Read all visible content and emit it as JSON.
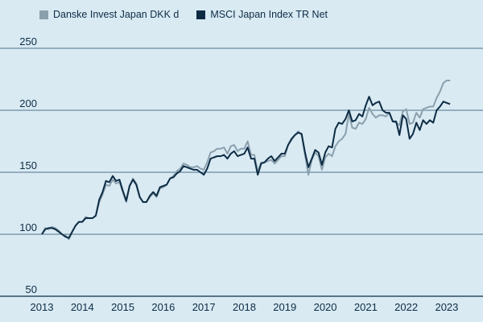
{
  "chart_data": {
    "type": "line",
    "title": "",
    "xlabel": "",
    "ylabel": "",
    "xlim": [
      2013.0,
      2023.2
    ],
    "ylim": [
      50,
      250
    ],
    "yticks": [
      50,
      100,
      150,
      200,
      250
    ],
    "xticks": [
      "2013",
      "2014",
      "2015",
      "2016",
      "2017",
      "2018",
      "2019",
      "2020",
      "2021",
      "2022",
      "2023"
    ],
    "grid": "horizontal",
    "legend_position": "top-left",
    "series": [
      {
        "name": "Danske Invest Japan DKK d",
        "color": "#8aa0ad",
        "points": [
          [
            2013.0,
            100
          ],
          [
            2013.083,
            105
          ],
          [
            2013.167,
            104
          ],
          [
            2013.25,
            106
          ],
          [
            2013.333,
            105
          ],
          [
            2013.417,
            103
          ],
          [
            2013.5,
            100
          ],
          [
            2013.583,
            99
          ],
          [
            2013.667,
            96
          ],
          [
            2013.75,
            102
          ],
          [
            2013.833,
            107
          ],
          [
            2013.917,
            110
          ],
          [
            2014.0,
            110
          ],
          [
            2014.083,
            114
          ],
          [
            2014.167,
            113
          ],
          [
            2014.25,
            113
          ],
          [
            2014.333,
            115
          ],
          [
            2014.417,
            126
          ],
          [
            2014.5,
            132
          ],
          [
            2014.583,
            140
          ],
          [
            2014.667,
            139
          ],
          [
            2014.75,
            144
          ],
          [
            2014.833,
            141
          ],
          [
            2014.917,
            142
          ],
          [
            2015.0,
            134
          ],
          [
            2015.083,
            126
          ],
          [
            2015.167,
            139
          ],
          [
            2015.25,
            145
          ],
          [
            2015.333,
            141
          ],
          [
            2015.417,
            130
          ],
          [
            2015.5,
            126
          ],
          [
            2015.583,
            126
          ],
          [
            2015.667,
            130
          ],
          [
            2015.75,
            133
          ],
          [
            2015.833,
            130
          ],
          [
            2015.917,
            137
          ],
          [
            2016.0,
            138
          ],
          [
            2016.083,
            140
          ],
          [
            2016.167,
            145
          ],
          [
            2016.25,
            147
          ],
          [
            2016.333,
            151
          ],
          [
            2016.417,
            153
          ],
          [
            2016.5,
            157
          ],
          [
            2016.583,
            156
          ],
          [
            2016.667,
            154
          ],
          [
            2016.75,
            154
          ],
          [
            2016.833,
            155
          ],
          [
            2016.917,
            153
          ],
          [
            2017.0,
            152
          ],
          [
            2017.083,
            158
          ],
          [
            2017.167,
            166
          ],
          [
            2017.25,
            167
          ],
          [
            2017.333,
            169
          ],
          [
            2017.417,
            169
          ],
          [
            2017.5,
            170
          ],
          [
            2017.583,
            165
          ],
          [
            2017.667,
            171
          ],
          [
            2017.75,
            172
          ],
          [
            2017.833,
            167
          ],
          [
            2017.917,
            169
          ],
          [
            2018.0,
            169
          ],
          [
            2018.083,
            175
          ],
          [
            2018.167,
            164
          ],
          [
            2018.25,
            164
          ],
          [
            2018.333,
            150
          ],
          [
            2018.417,
            158
          ],
          [
            2018.5,
            158
          ],
          [
            2018.583,
            159
          ],
          [
            2018.667,
            160
          ],
          [
            2018.75,
            157
          ],
          [
            2018.833,
            160
          ],
          [
            2018.917,
            163
          ],
          [
            2019.0,
            163
          ],
          [
            2019.083,
            172
          ],
          [
            2019.167,
            176
          ],
          [
            2019.25,
            180
          ],
          [
            2019.333,
            183
          ],
          [
            2019.417,
            180
          ],
          [
            2019.5,
            164
          ],
          [
            2019.583,
            148
          ],
          [
            2019.667,
            160
          ],
          [
            2019.75,
            166
          ],
          [
            2019.833,
            163
          ],
          [
            2019.917,
            152
          ],
          [
            2020.0,
            162
          ],
          [
            2020.083,
            165
          ],
          [
            2020.167,
            163
          ],
          [
            2020.25,
            171
          ],
          [
            2020.333,
            175
          ],
          [
            2020.417,
            177
          ],
          [
            2020.5,
            181
          ],
          [
            2020.583,
            197
          ],
          [
            2020.667,
            186
          ],
          [
            2020.75,
            185
          ],
          [
            2020.833,
            190
          ],
          [
            2020.917,
            189
          ],
          [
            2021.0,
            193
          ],
          [
            2021.083,
            202
          ],
          [
            2021.167,
            197
          ],
          [
            2021.25,
            194
          ],
          [
            2021.333,
            196
          ],
          [
            2021.417,
            196
          ],
          [
            2021.5,
            195
          ],
          [
            2021.583,
            198
          ],
          [
            2021.667,
            191
          ],
          [
            2021.75,
            190
          ],
          [
            2021.833,
            188
          ],
          [
            2021.917,
            199
          ],
          [
            2022.0,
            201
          ],
          [
            2022.083,
            189
          ],
          [
            2022.167,
            190
          ],
          [
            2022.25,
            198
          ],
          [
            2022.333,
            194
          ],
          [
            2022.417,
            201
          ],
          [
            2022.5,
            202
          ],
          [
            2022.583,
            203
          ],
          [
            2022.667,
            203
          ],
          [
            2022.75,
            210
          ],
          [
            2022.833,
            215
          ],
          [
            2022.917,
            222
          ],
          [
            2023.0,
            224
          ],
          [
            2023.083,
            224
          ]
        ]
      },
      {
        "name": "MSCI Japan Index TR Net",
        "color": "#0d2c44",
        "points": [
          [
            2013.0,
            100
          ],
          [
            2013.083,
            104
          ],
          [
            2013.167,
            105
          ],
          [
            2013.25,
            105
          ],
          [
            2013.333,
            104
          ],
          [
            2013.417,
            102
          ],
          [
            2013.5,
            100
          ],
          [
            2013.583,
            98
          ],
          [
            2013.667,
            97
          ],
          [
            2013.75,
            102
          ],
          [
            2013.833,
            107
          ],
          [
            2013.917,
            110
          ],
          [
            2014.0,
            110
          ],
          [
            2014.083,
            113
          ],
          [
            2014.167,
            113
          ],
          [
            2014.25,
            113
          ],
          [
            2014.333,
            115
          ],
          [
            2014.417,
            128
          ],
          [
            2014.5,
            134
          ],
          [
            2014.583,
            143
          ],
          [
            2014.667,
            142
          ],
          [
            2014.75,
            147
          ],
          [
            2014.833,
            143
          ],
          [
            2014.917,
            144
          ],
          [
            2015.0,
            135
          ],
          [
            2015.083,
            127
          ],
          [
            2015.167,
            139
          ],
          [
            2015.25,
            144
          ],
          [
            2015.333,
            140
          ],
          [
            2015.417,
            130
          ],
          [
            2015.5,
            126
          ],
          [
            2015.583,
            126
          ],
          [
            2015.667,
            131
          ],
          [
            2015.75,
            134
          ],
          [
            2015.833,
            131
          ],
          [
            2015.917,
            138
          ],
          [
            2016.0,
            139
          ],
          [
            2016.083,
            140
          ],
          [
            2016.167,
            145
          ],
          [
            2016.25,
            146
          ],
          [
            2016.333,
            149
          ],
          [
            2016.417,
            151
          ],
          [
            2016.5,
            155
          ],
          [
            2016.583,
            154
          ],
          [
            2016.667,
            153
          ],
          [
            2016.75,
            152
          ],
          [
            2016.833,
            152
          ],
          [
            2016.917,
            150
          ],
          [
            2017.0,
            148
          ],
          [
            2017.083,
            153
          ],
          [
            2017.167,
            161
          ],
          [
            2017.25,
            162
          ],
          [
            2017.333,
            163
          ],
          [
            2017.417,
            163
          ],
          [
            2017.5,
            164
          ],
          [
            2017.583,
            161
          ],
          [
            2017.667,
            165
          ],
          [
            2017.75,
            167
          ],
          [
            2017.833,
            163
          ],
          [
            2017.917,
            164
          ],
          [
            2018.0,
            165
          ],
          [
            2018.083,
            170
          ],
          [
            2018.167,
            161
          ],
          [
            2018.25,
            161
          ],
          [
            2018.333,
            148
          ],
          [
            2018.417,
            157
          ],
          [
            2018.5,
            158
          ],
          [
            2018.583,
            161
          ],
          [
            2018.667,
            163
          ],
          [
            2018.75,
            159
          ],
          [
            2018.833,
            162
          ],
          [
            2018.917,
            165
          ],
          [
            2019.0,
            165
          ],
          [
            2019.083,
            172
          ],
          [
            2019.167,
            177
          ],
          [
            2019.25,
            180
          ],
          [
            2019.333,
            182
          ],
          [
            2019.417,
            181
          ],
          [
            2019.5,
            166
          ],
          [
            2019.583,
            154
          ],
          [
            2019.667,
            161
          ],
          [
            2019.75,
            168
          ],
          [
            2019.833,
            166
          ],
          [
            2019.917,
            156
          ],
          [
            2020.0,
            166
          ],
          [
            2020.083,
            171
          ],
          [
            2020.167,
            170
          ],
          [
            2020.25,
            185
          ],
          [
            2020.333,
            190
          ],
          [
            2020.417,
            189
          ],
          [
            2020.5,
            193
          ],
          [
            2020.583,
            200
          ],
          [
            2020.667,
            191
          ],
          [
            2020.75,
            192
          ],
          [
            2020.833,
            197
          ],
          [
            2020.917,
            195
          ],
          [
            2021.0,
            204
          ],
          [
            2021.083,
            211
          ],
          [
            2021.167,
            204
          ],
          [
            2021.25,
            206
          ],
          [
            2021.333,
            207
          ],
          [
            2021.417,
            200
          ],
          [
            2021.5,
            198
          ],
          [
            2021.583,
            198
          ],
          [
            2021.667,
            191
          ],
          [
            2021.75,
            191
          ],
          [
            2021.833,
            180
          ],
          [
            2021.917,
            196
          ],
          [
            2022.0,
            193
          ],
          [
            2022.083,
            177
          ],
          [
            2022.167,
            181
          ],
          [
            2022.25,
            190
          ],
          [
            2022.333,
            184
          ],
          [
            2022.417,
            192
          ],
          [
            2022.5,
            189
          ],
          [
            2022.583,
            192
          ],
          [
            2022.667,
            190
          ],
          [
            2022.75,
            200
          ],
          [
            2022.833,
            203
          ],
          [
            2022.917,
            207
          ],
          [
            2023.0,
            206
          ],
          [
            2023.083,
            205
          ]
        ]
      }
    ]
  }
}
